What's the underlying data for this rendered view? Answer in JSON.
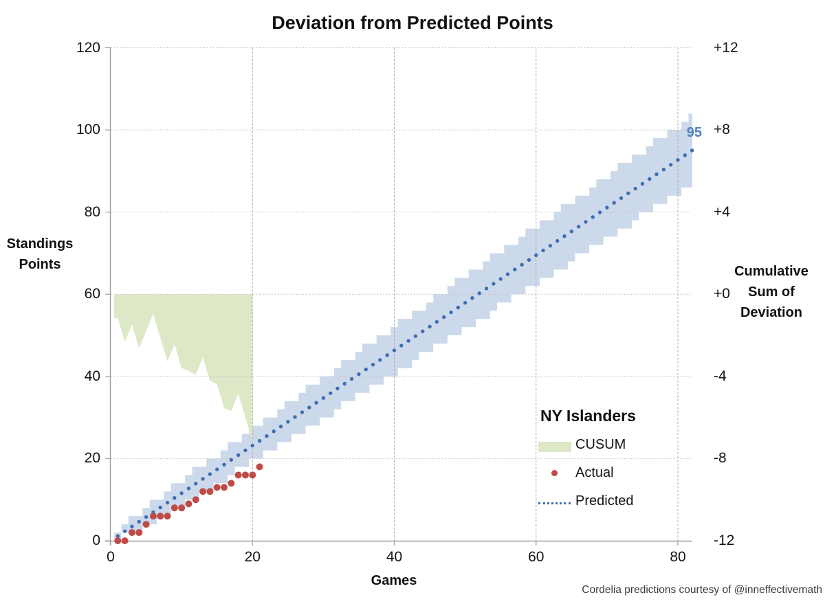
{
  "title": "Deviation from Predicted Points",
  "axes": {
    "left": {
      "title_lines": [
        "Standings",
        "Points"
      ],
      "ticks": [
        0,
        20,
        40,
        60,
        80,
        100,
        120
      ],
      "range": [
        0,
        120
      ]
    },
    "right": {
      "title_lines": [
        "Cumulative",
        "Sum of",
        "Deviation"
      ],
      "ticks": [
        "+12",
        "+8",
        "+4",
        "+0",
        "-4",
        "-8",
        "-12"
      ],
      "tick_values": [
        12,
        8,
        4,
        0,
        -4,
        -8,
        -12
      ],
      "range": [
        -12,
        12
      ]
    },
    "x": {
      "title": "Games",
      "ticks": [
        0,
        20,
        40,
        60,
        80
      ],
      "range": [
        0,
        82
      ]
    }
  },
  "legend": {
    "header": "NY Islanders",
    "items": [
      {
        "label": "CUSUM",
        "marker": "area-swatch",
        "color": "#dde8c7"
      },
      {
        "label": "Actual",
        "marker": "dot",
        "color": "#bf4b48"
      },
      {
        "label": "Predicted",
        "marker": "dotted-line",
        "color": "#3e6db5"
      }
    ]
  },
  "annotations": {
    "predicted_final_label": "95"
  },
  "attribution": "Cordelia predictions courtesy of @inneffectivemath",
  "colors": {
    "cusum_fill": "#dde8c7",
    "band_fill": "#ccd9ea",
    "predicted_dot": "#3e6db5",
    "actual_dot": "#bf4b48",
    "annotation_blue": "#4f81bd",
    "axis_line": "#a0a0a0",
    "grid_h": "#c3c3c3",
    "grid_v": "#a8a8a8"
  },
  "chart_data": {
    "type": "combo",
    "title": "Deviation from Predicted Points",
    "x_axis": {
      "label": "Games",
      "range": [
        0,
        82
      ],
      "ticks": [
        0,
        20,
        40,
        60,
        80
      ]
    },
    "y_axis_left": {
      "label": "Standings Points",
      "range": [
        0,
        120
      ],
      "ticks": [
        0,
        20,
        40,
        60,
        80,
        100,
        120
      ]
    },
    "y_axis_right": {
      "label": "Cumulative Sum of Deviation",
      "range": [
        -12,
        12
      ],
      "ticks": [
        12,
        8,
        4,
        0,
        -4,
        -8,
        -12
      ]
    },
    "grid": true,
    "legend_position": "inside-right",
    "series": [
      {
        "name": "CUSUM",
        "type": "area",
        "axis": "right",
        "fill": "#dde8c7",
        "baseline": 0,
        "x": [
          1,
          2,
          3,
          4,
          5,
          6,
          7,
          8,
          9,
          10,
          11,
          12,
          13,
          14,
          15,
          16,
          17,
          18,
          19,
          20
        ],
        "values": [
          -1.16,
          -2.32,
          -1.48,
          -2.63,
          -1.79,
          -0.95,
          -2.11,
          -3.27,
          -2.43,
          -3.59,
          -3.74,
          -3.9,
          -3.06,
          -4.22,
          -4.38,
          -5.54,
          -5.69,
          -4.85,
          -6.01,
          -7.17
        ]
      },
      {
        "name": "Actual",
        "type": "scatter",
        "axis": "left",
        "color": "#bf4b48",
        "marker_radius": 5,
        "x": [
          1,
          2,
          3,
          4,
          5,
          6,
          7,
          8,
          9,
          10,
          11,
          12,
          13,
          14,
          15,
          16,
          17,
          18,
          19,
          20,
          21
        ],
        "values": [
          0,
          0,
          2,
          2,
          4,
          6,
          6,
          6,
          8,
          8,
          9,
          10,
          12,
          12,
          13,
          13,
          14,
          16,
          16,
          16,
          18
        ]
      },
      {
        "name": "Predicted",
        "type": "dotted_line",
        "axis": "left",
        "color": "#3e6db5",
        "x_start": 1,
        "x_end": 82,
        "points_per_game": 1.1585,
        "final_value": 95
      },
      {
        "name": "Prediction band",
        "type": "stepped_band",
        "axis": "left",
        "fill": "#ccd9ea",
        "center_slope": 1.1585,
        "half_width_coeff": 0.9,
        "half_width_formula": "0.9*sqrt(games)",
        "step_rounding": 2
      }
    ],
    "annotations": [
      {
        "text": "95",
        "x": 82,
        "y": 99,
        "color": "#4f81bd"
      }
    ]
  }
}
